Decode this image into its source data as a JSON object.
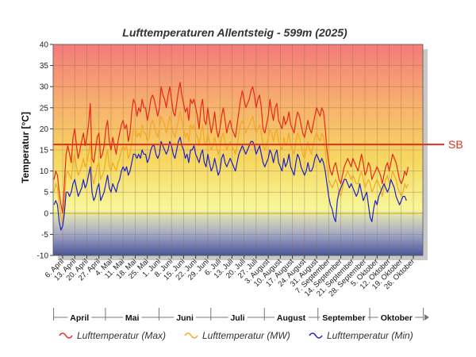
{
  "chart_data": {
    "type": "line",
    "title": "Lufttemperaturen Allentsteig - 599m (2025)",
    "ylabel": "Temperatur [°C]",
    "xlabel": "",
    "ylim": [
      -10,
      40
    ],
    "yticks": [
      -10,
      -5,
      0,
      5,
      10,
      15,
      20,
      25,
      30,
      35,
      40
    ],
    "grid": true,
    "legend_position": "bottom",
    "date_range": [
      "2025-04-01",
      "2025-10-31"
    ],
    "xtick_labels": [
      "6. April",
      "13. April",
      "20. April",
      "27. April",
      "4. Mai",
      "11. Mai",
      "18. Mai",
      "25. Mai",
      "1. Juni",
      "8. Juni",
      "15. Juni",
      "22. Juni",
      "29. Juni",
      "6. Juli",
      "13. Juli",
      "20. Juli",
      "27. Juli",
      "3. August",
      "10. August",
      "17. August",
      "24. August",
      "31. August",
      "7. September",
      "14. September",
      "21. September",
      "28. September",
      "5. Oktober",
      "12. Oktober",
      "19. Oktober",
      "26. Oktober"
    ],
    "months": [
      "April",
      "Mai",
      "Juni",
      "Juli",
      "August",
      "September",
      "Oktober"
    ],
    "reference_line": {
      "label": "SB",
      "value": 16.3,
      "color": "#e0301e"
    },
    "series": [
      {
        "name": "Lufttemperatur (Max)",
        "color": "#e8271c",
        "values": [
          8,
          10,
          9,
          5,
          2,
          0,
          7,
          14,
          16,
          14,
          12,
          18,
          20,
          16,
          13,
          15,
          17,
          19,
          16,
          18,
          21,
          26,
          13,
          12,
          15,
          18,
          19,
          13,
          14,
          16,
          20,
          22,
          17,
          15,
          18,
          16,
          14,
          17,
          19,
          21,
          22,
          20,
          21,
          17,
          19,
          24,
          27,
          26,
          23,
          25,
          24,
          27,
          25,
          25,
          22,
          24,
          27,
          28,
          27,
          25,
          23,
          25,
          30,
          28,
          27,
          25,
          28,
          30,
          27,
          24,
          23,
          26,
          29,
          31,
          28,
          26,
          24,
          25,
          22,
          27,
          26,
          27,
          25,
          23,
          20,
          25,
          27,
          22,
          21,
          25,
          22,
          19,
          21,
          24,
          20,
          18,
          20,
          23,
          25,
          22,
          19,
          21,
          22,
          20,
          19,
          18,
          21,
          24,
          27,
          29,
          27,
          25,
          26,
          27,
          29,
          30,
          28,
          25,
          27,
          28,
          25,
          20,
          19,
          21,
          23,
          27,
          24,
          22,
          25,
          26,
          22,
          21,
          20,
          23,
          21,
          22,
          24,
          21,
          20,
          19,
          22,
          24,
          23,
          21,
          19,
          18,
          20,
          22,
          20,
          19,
          21,
          23,
          25,
          24,
          23,
          25,
          24,
          20,
          15,
          12,
          10,
          9,
          11,
          12,
          10,
          8,
          7,
          9,
          11,
          12,
          13,
          12,
          11,
          13,
          12,
          11,
          10,
          12,
          14,
          12,
          9,
          10,
          12,
          11,
          8,
          9,
          10,
          11,
          10,
          9,
          7,
          9,
          11,
          12,
          10,
          12,
          14,
          13,
          12,
          10,
          8,
          7,
          8,
          10,
          9,
          11
        ]
      },
      {
        "name": "Lufttemperatur (MW)",
        "color": "#f5a623",
        "values": [
          5,
          7,
          6,
          2,
          -1,
          -3,
          3,
          9,
          10,
          9,
          8,
          12,
          14,
          11,
          9,
          10,
          11,
          13,
          11,
          12,
          14,
          17,
          9,
          7,
          9,
          11,
          12,
          8,
          9,
          10,
          13,
          15,
          11,
          10,
          12,
          11,
          10,
          12,
          13,
          15,
          16,
          15,
          16,
          13,
          14,
          17,
          20,
          20,
          18,
          19,
          18,
          21,
          19,
          19,
          17,
          18,
          21,
          22,
          21,
          19,
          18,
          20,
          23,
          22,
          21,
          19,
          21,
          23,
          21,
          19,
          18,
          20,
          22,
          24,
          22,
          20,
          18,
          19,
          17,
          21,
          20,
          21,
          19,
          18,
          16,
          19,
          21,
          17,
          16,
          19,
          17,
          15,
          16,
          18,
          16,
          14,
          15,
          18,
          19,
          17,
          15,
          16,
          17,
          16,
          15,
          14,
          16,
          19,
          21,
          22,
          21,
          19,
          20,
          21,
          22,
          23,
          21,
          19,
          20,
          21,
          19,
          16,
          15,
          16,
          18,
          20,
          19,
          17,
          19,
          20,
          17,
          16,
          15,
          18,
          16,
          17,
          19,
          16,
          15,
          14,
          17,
          19,
          18,
          16,
          14,
          13,
          15,
          17,
          15,
          14,
          16,
          18,
          19,
          18,
          17,
          19,
          18,
          15,
          11,
          8,
          7,
          6,
          7,
          8,
          7,
          5,
          4,
          6,
          8,
          9,
          10,
          9,
          8,
          9,
          8,
          7,
          7,
          9,
          10,
          8,
          6,
          7,
          8,
          7,
          5,
          6,
          7,
          8,
          7,
          6,
          4,
          6,
          8,
          9,
          7,
          8,
          10,
          9,
          8,
          6,
          5,
          4,
          5,
          7,
          6,
          7
        ]
      },
      {
        "name": "Lufttemperatur (Min)",
        "color": "#1c22c8",
        "values": [
          2,
          3,
          2,
          -2,
          -4,
          -3,
          0,
          5,
          5,
          4,
          5,
          7,
          8,
          6,
          4,
          5,
          6,
          8,
          6,
          7,
          9,
          11,
          5,
          3,
          4,
          6,
          7,
          3,
          4,
          5,
          7,
          9,
          6,
          5,
          7,
          6,
          5,
          7,
          8,
          10,
          11,
          10,
          11,
          9,
          10,
          12,
          14,
          14,
          13,
          14,
          13,
          15,
          14,
          14,
          12,
          13,
          15,
          16,
          16,
          14,
          13,
          14,
          17,
          16,
          15,
          14,
          15,
          17,
          16,
          14,
          13,
          15,
          17,
          18,
          16,
          15,
          13,
          14,
          12,
          15,
          15,
          16,
          14,
          13,
          12,
          14,
          15,
          12,
          11,
          14,
          12,
          10,
          11,
          13,
          11,
          9,
          10,
          13,
          14,
          12,
          11,
          12,
          13,
          12,
          11,
          10,
          12,
          14,
          15,
          16,
          15,
          14,
          15,
          16,
          17,
          17,
          16,
          14,
          15,
          16,
          14,
          12,
          11,
          12,
          13,
          15,
          14,
          12,
          14,
          15,
          12,
          11,
          10,
          13,
          11,
          12,
          14,
          11,
          10,
          9,
          12,
          14,
          13,
          11,
          10,
          9,
          10,
          12,
          10,
          10,
          11,
          13,
          14,
          13,
          12,
          13,
          12,
          10,
          7,
          4,
          2,
          1,
          -1,
          -2,
          3,
          5,
          6,
          7,
          8,
          8,
          7,
          6,
          7,
          6,
          5,
          4,
          5,
          7,
          5,
          3,
          4,
          5,
          2,
          -1,
          -2,
          1,
          3,
          2,
          4,
          5,
          6,
          7,
          6,
          5,
          6,
          8,
          7,
          6,
          4,
          3,
          2,
          3,
          4,
          4,
          3
        ]
      }
    ]
  }
}
